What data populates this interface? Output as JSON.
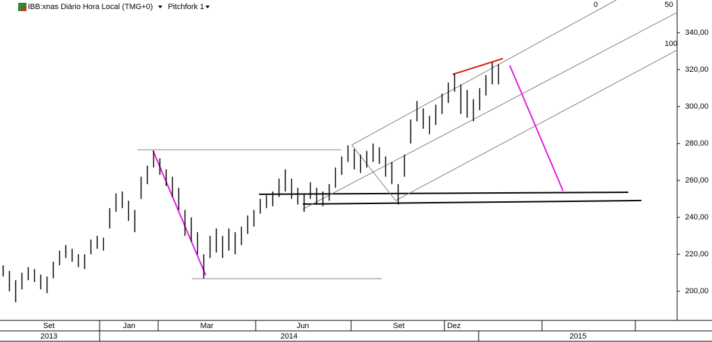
{
  "toolbar": {
    "symbol": "IBB:xnas Diário Hora Local (TMG+0)",
    "tool": "Pitchfork 1"
  },
  "fork_labels": [
    "0",
    "50",
    "100"
  ],
  "chart_data": {
    "type": "ohlc",
    "xlim": [
      -0.5,
      107.5
    ],
    "ylim": [
      184.2,
      357.7
    ],
    "yticks": [
      {
        "value": 200,
        "label": "200,00"
      },
      {
        "value": 220,
        "label": "220,00"
      },
      {
        "value": 240,
        "label": "240,00"
      },
      {
        "value": 260,
        "label": "260,00"
      },
      {
        "value": 280,
        "label": "280,00"
      },
      {
        "value": 300,
        "label": "300,00"
      },
      {
        "value": 320,
        "label": "320,00"
      },
      {
        "value": 340,
        "label": "340,00"
      }
    ],
    "xticks": [
      {
        "value": 7.3,
        "label": "Set"
      },
      {
        "value": 20.1,
        "label": "Jan"
      },
      {
        "value": 32.5,
        "label": "Mar"
      },
      {
        "value": 47.8,
        "label": "Jun"
      },
      {
        "value": 63.1,
        "label": "Set"
      },
      {
        "value": 71.9,
        "label": "Dez"
      }
    ],
    "xticks_year": [
      {
        "value": 7.3,
        "label": "2013"
      },
      {
        "value": 45.6,
        "label": "2014"
      },
      {
        "value": 91.7,
        "label": "2015"
      }
    ],
    "color": "#000000",
    "high": [
      214,
      211,
      206,
      210,
      213,
      212,
      209,
      208,
      216,
      222,
      225,
      223,
      220,
      220,
      228,
      230,
      229,
      245,
      253,
      254,
      249,
      244,
      262,
      268,
      276,
      272,
      266,
      262,
      256,
      244,
      240,
      232,
      220,
      230,
      234,
      230,
      234,
      232,
      235,
      241,
      244,
      250,
      252,
      254,
      261,
      266,
      261,
      256,
      253,
      259,
      256,
      254,
      258,
      267,
      273,
      279,
      277,
      274,
      276,
      280,
      278,
      273,
      270,
      258,
      274,
      293,
      303,
      299,
      295,
      301,
      307,
      313,
      318,
      312,
      309,
      304,
      310,
      317,
      324,
      323
    ],
    "low": [
      208,
      200,
      194,
      201,
      206,
      205,
      201,
      199,
      207,
      214,
      218,
      216,
      213,
      212,
      220,
      223,
      222,
      234,
      243,
      245,
      238,
      232,
      250,
      258,
      267,
      263,
      257,
      251,
      244,
      230,
      227,
      220,
      207,
      218,
      221,
      218,
      222,
      220,
      225,
      231,
      235,
      242,
      245,
      246,
      251,
      254,
      250,
      247,
      243,
      250,
      247,
      246,
      249,
      256,
      263,
      270,
      266,
      264,
      267,
      270,
      269,
      262,
      258,
      247,
      262,
      280,
      292,
      288,
      285,
      290,
      296,
      302,
      308,
      296,
      294,
      292,
      298,
      306,
      312,
      312
    ],
    "drawings": [
      {
        "x": [
          21.4,
          53.9
        ],
        "y": [
          276.6,
          276.6
        ],
        "color": "#808080"
      },
      {
        "x": [
          30.1,
          60.4
        ],
        "y": [
          206.8,
          206.8
        ],
        "color": "#808080"
      },
      {
        "x": [
          40.8,
          99.7
        ],
        "y": [
          252.5,
          253.6
        ],
        "color": "#000000"
      },
      {
        "x": [
          47.8,
          101.8
        ],
        "y": [
          247.2,
          249.1
        ],
        "color": "#000000"
      },
      {
        "x": [
          55.6,
          97.8
        ],
        "y": [
          279.2,
          357.7
        ],
        "color": "#808080"
      },
      {
        "x": [
          47.8,
          107.5
        ],
        "y": [
          244.5,
          351.0
        ],
        "color": "#808080"
      },
      {
        "x": [
          62.6,
          107.5
        ],
        "y": [
          249.1,
          330.6
        ],
        "color": "#808080"
      },
      {
        "x": [
          55.6,
          62.6
        ],
        "y": [
          279.2,
          249.1
        ],
        "color": "#808080"
      },
      {
        "x": [
          23.9,
          32.3
        ],
        "y": [
          276.2,
          208.7
        ],
        "color": "#e619e6"
      },
      {
        "x": [
          80.8,
          89.3
        ],
        "y": [
          322.3,
          254.3
        ],
        "color": "#e619e6"
      },
      {
        "x": [
          71.7,
          79.7
        ],
        "y": [
          317.4,
          326.0
        ],
        "color": "#e01010"
      }
    ]
  }
}
